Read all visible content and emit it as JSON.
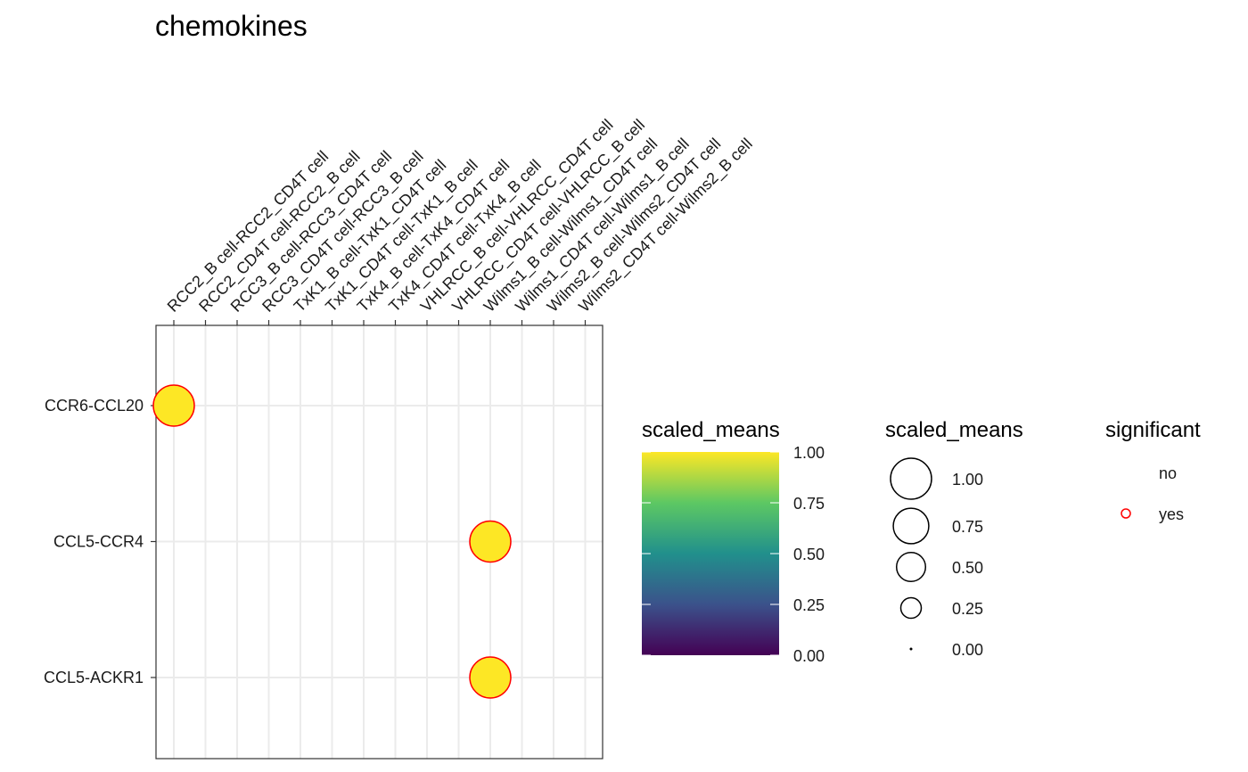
{
  "chart_data": {
    "type": "scatter",
    "title": "chemokines",
    "x_categories": [
      "RCC2_B cell-RCC2_CD4T cell",
      "RCC2_CD4T cell-RCC2_B cell",
      "RCC3_B cell-RCC3_CD4T cell",
      "RCC3_CD4T cell-RCC3_B cell",
      "TxK1_B cell-TxK1_CD4T cell",
      "TxK1_CD4T cell-TxK1_B cell",
      "TxK4_B cell-TxK4_CD4T cell",
      "TxK4_CD4T cell-TxK4_B cell",
      "VHLRCC_B cell-VHLRCC_CD4T cell",
      "VHLRCC_CD4T cell-VHLRCC_B cell",
      "Wilms1_B cell-Wilms1_CD4T cell",
      "Wilms1_CD4T cell-Wilms1_B cell",
      "Wilms2_B cell-Wilms2_CD4T cell",
      "Wilms2_CD4T cell-Wilms2_B cell"
    ],
    "y_categories": [
      "CCR6-CCL20",
      "CCL5-CCR4",
      "CCL5-ACKR1"
    ],
    "points": [
      {
        "x": "RCC2_B cell-RCC2_CD4T cell",
        "y": "CCR6-CCL20",
        "scaled_means": 1.0,
        "significant": "yes"
      },
      {
        "x": "Wilms1_B cell-Wilms1_CD4T cell",
        "y": "CCL5-CCR4",
        "scaled_means": 1.0,
        "significant": "yes"
      },
      {
        "x": "Wilms1_B cell-Wilms1_CD4T cell",
        "y": "CCL5-ACKR1",
        "scaled_means": 1.0,
        "significant": "yes"
      }
    ],
    "point_fill": "#FDE725",
    "significant_stroke": "#FF0000",
    "legends": {
      "color": {
        "title": "scaled_means",
        "ticks": [
          "1.00",
          "0.75",
          "0.50",
          "0.25",
          "0.00"
        ],
        "tick_values": [
          1.0,
          0.75,
          0.5,
          0.25,
          0.0
        ],
        "palette": "viridis",
        "colors": [
          "#440154",
          "#3B528B",
          "#21908C",
          "#5DC863",
          "#FDE725"
        ]
      },
      "size": {
        "title": "scaled_means",
        "labels": [
          "1.00",
          "0.75",
          "0.50",
          "0.25",
          "0.00"
        ],
        "values": [
          1.0,
          0.75,
          0.5,
          0.25,
          0.0
        ]
      },
      "significant": {
        "title": "significant",
        "labels": [
          "no",
          "yes"
        ]
      }
    },
    "grid": true,
    "legend_position": "right"
  }
}
